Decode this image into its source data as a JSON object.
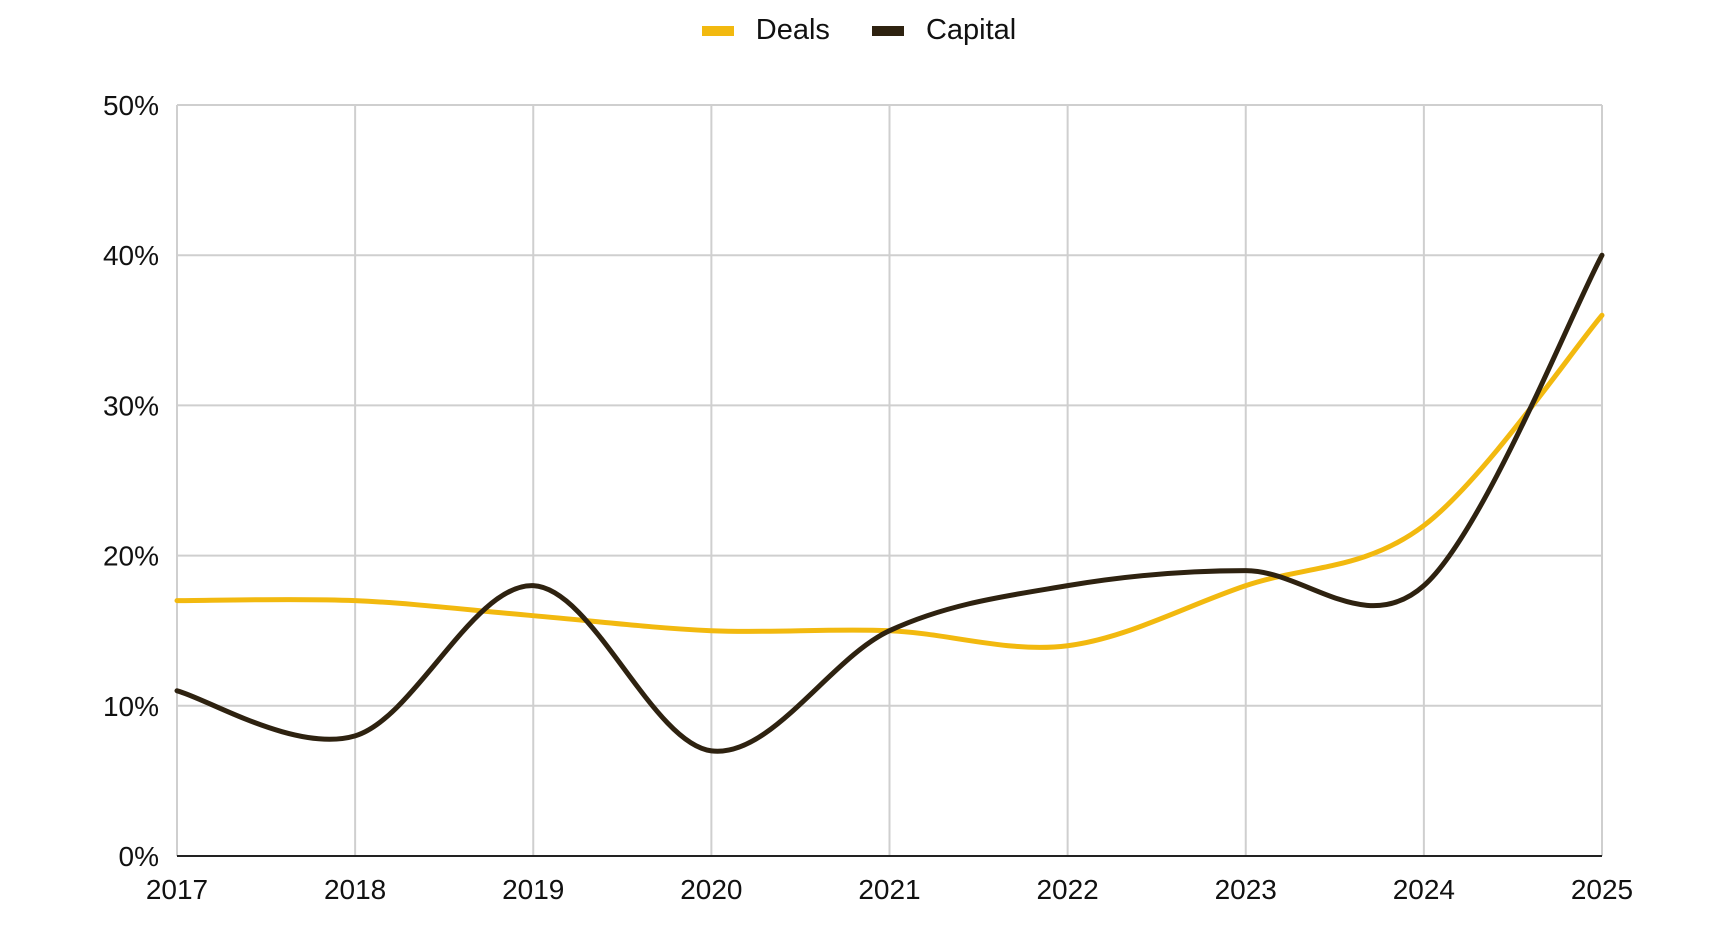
{
  "chart_data": {
    "type": "line",
    "x": [
      "2017",
      "2018",
      "2019",
      "2020",
      "2021",
      "2022",
      "2023",
      "2024",
      "2025"
    ],
    "series": [
      {
        "name": "Deals",
        "color": "#f2b90f",
        "values": [
          17,
          17,
          16,
          15,
          15,
          14,
          18,
          22,
          36
        ]
      },
      {
        "name": "Capital",
        "color": "#2e2210",
        "values": [
          11,
          8,
          18,
          7,
          15,
          18,
          19,
          18,
          40
        ]
      }
    ],
    "y_ticks": [
      "0%",
      "10%",
      "20%",
      "30%",
      "40%",
      "50%"
    ],
    "ylim": [
      0,
      50
    ],
    "y_unit": "%",
    "grid": true,
    "legend_position": "top-center",
    "smooth": true
  }
}
